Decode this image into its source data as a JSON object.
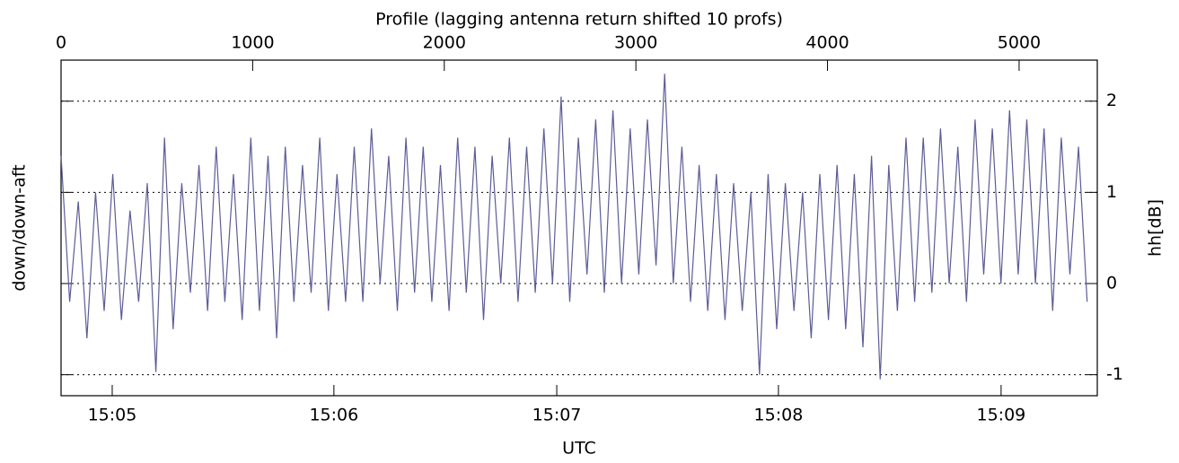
{
  "chart_data": {
    "type": "line",
    "title": "Profile (lagging antenna return shifted 10 profs)",
    "x_label": "UTC",
    "y_label": "down/down-aft",
    "y2_label": "hh[dB]",
    "xlim": [
      0,
      5408
    ],
    "xticks": [
      0,
      1000,
      2000,
      3000,
      4000,
      5000
    ],
    "x2ticks": [
      {
        "value": 267,
        "label": "15:05"
      },
      {
        "value": 1424,
        "label": "15:06"
      },
      {
        "value": 2587,
        "label": "15:07"
      },
      {
        "value": 3744,
        "label": "15:08"
      },
      {
        "value": 4906,
        "label": "15:09"
      }
    ],
    "ylim": [
      -1.23,
      2.45
    ],
    "yticks": [
      -1,
      0,
      1,
      2
    ],
    "grid": true,
    "x": [
      0,
      45,
      90,
      135,
      180,
      225,
      270,
      315,
      360,
      405,
      450,
      495,
      540,
      585,
      630,
      675,
      720,
      765,
      810,
      855,
      900,
      945,
      990,
      1035,
      1080,
      1125,
      1170,
      1215,
      1260,
      1305,
      1350,
      1395,
      1440,
      1485,
      1530,
      1575,
      1620,
      1665,
      1710,
      1755,
      1800,
      1845,
      1890,
      1935,
      1980,
      2025,
      2070,
      2115,
      2160,
      2205,
      2250,
      2295,
      2340,
      2385,
      2430,
      2475,
      2520,
      2565,
      2610,
      2655,
      2700,
      2745,
      2790,
      2835,
      2880,
      2925,
      2970,
      3015,
      3060,
      3105,
      3150,
      3195,
      3240,
      3285,
      3330,
      3375,
      3420,
      3465,
      3510,
      3555,
      3600,
      3645,
      3690,
      3735,
      3780,
      3825,
      3870,
      3915,
      3960,
      4005,
      4050,
      4095,
      4140,
      4185,
      4230,
      4275,
      4320,
      4365,
      4410,
      4455,
      4500,
      4545,
      4590,
      4635,
      4680,
      4725,
      4770,
      4815,
      4860,
      4905,
      4950,
      4995,
      5040,
      5085,
      5130,
      5175,
      5220,
      5265,
      5310,
      5355
    ],
    "series": [
      {
        "color": "#5c5c98",
        "values": [
          1.4,
          -0.2,
          0.9,
          -0.6,
          1.0,
          -0.3,
          1.2,
          -0.4,
          0.8,
          -0.2,
          1.1,
          -0.97,
          1.6,
          -0.5,
          1.1,
          -0.1,
          1.3,
          -0.3,
          1.5,
          -0.2,
          1.2,
          -0.4,
          1.6,
          -0.3,
          1.4,
          -0.6,
          1.5,
          -0.2,
          1.3,
          -0.1,
          1.6,
          -0.3,
          1.2,
          -0.2,
          1.5,
          -0.2,
          1.7,
          0.0,
          1.4,
          -0.3,
          1.6,
          -0.1,
          1.5,
          -0.2,
          1.3,
          -0.3,
          1.6,
          -0.1,
          1.5,
          -0.4,
          1.4,
          0.0,
          1.6,
          -0.2,
          1.5,
          -0.1,
          1.7,
          0.0,
          2.05,
          -0.2,
          1.6,
          0.1,
          1.8,
          -0.1,
          1.9,
          0.0,
          1.7,
          0.1,
          1.8,
          0.2,
          2.3,
          0.0,
          1.5,
          -0.2,
          1.3,
          -0.3,
          1.2,
          -0.4,
          1.1,
          -0.3,
          1.0,
          -1.0,
          1.2,
          -0.5,
          1.1,
          -0.3,
          1.0,
          -0.6,
          1.2,
          -0.4,
          1.3,
          -0.5,
          1.2,
          -0.7,
          1.4,
          -1.05,
          1.3,
          -0.3,
          1.6,
          -0.2,
          1.6,
          -0.1,
          1.7,
          0.0,
          1.5,
          -0.2,
          1.8,
          0.1,
          1.7,
          0.0,
          1.9,
          0.1,
          1.8,
          0.0,
          1.7,
          -0.3,
          1.6,
          0.1,
          1.5,
          -0.2
        ]
      }
    ]
  }
}
